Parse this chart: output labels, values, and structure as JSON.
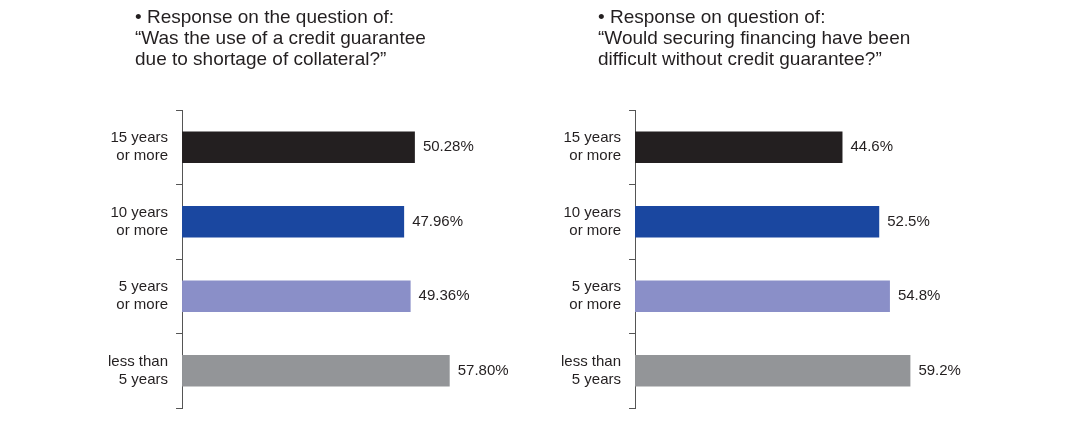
{
  "chart_data": [
    {
      "type": "bar",
      "orientation": "horizontal",
      "title": "• Response on the question of:\n“Was the use of a credit guarantee\ndue to shortage of collateral?”",
      "categories": [
        "15 years\nor more",
        "10 years\nor more",
        "5 years\nor more",
        "less than\n5 years"
      ],
      "values": [
        50.28,
        47.96,
        49.36,
        57.8
      ],
      "value_labels": [
        "50.28%",
        "47.96%",
        "49.36%",
        "57.80%"
      ],
      "colors": [
        "#231f20",
        "#1a47a0",
        "#8a8fc8",
        "#939598"
      ],
      "tick_labels": "y",
      "grid": false,
      "legend": false
    },
    {
      "type": "bar",
      "orientation": "horizontal",
      "title": "• Response on question of:\n“Would securing financing have been\ndifficult without credit guarantee?”",
      "categories": [
        "15 years\nor more",
        "10 years\nor more",
        "5 years\nor more",
        "less than\n5 years"
      ],
      "values": [
        44.6,
        52.5,
        54.8,
        59.2
      ],
      "value_labels": [
        "44.6%",
        "52.5%",
        "54.8%",
        "59.2%"
      ],
      "colors": [
        "#231f20",
        "#1a47a0",
        "#8a8fc8",
        "#939598"
      ],
      "tick_labels": "y",
      "grid": false,
      "legend": false
    }
  ]
}
